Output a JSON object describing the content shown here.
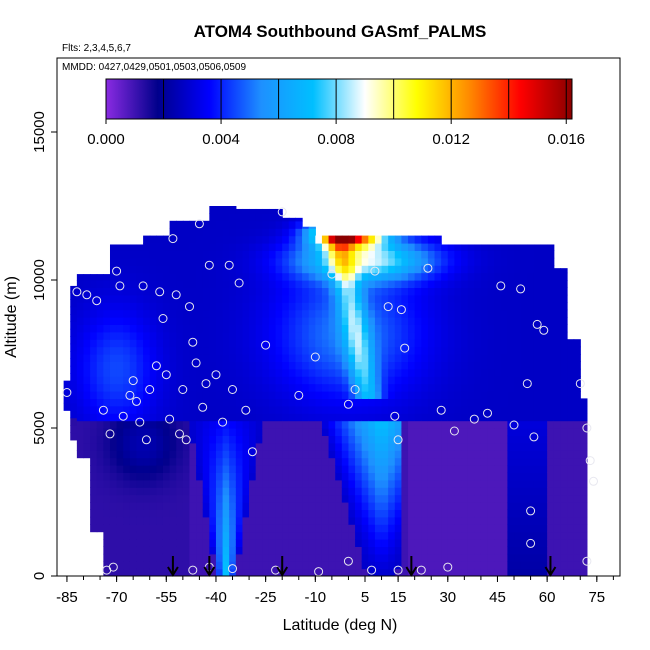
{
  "header": {
    "title": "ATOM4 Southbound GASmf_PALMS",
    "flights_note": "Flts: 2,3,4,5,6,7",
    "dates_note": "MMDD: 0427,0429,0501,0503,0506,0509"
  },
  "chart_data": {
    "type": "heatmap",
    "title": "ATOM4 Southbound GASmf_PALMS",
    "xlabel": "Latitude (deg N)",
    "ylabel": "Altitude (m)",
    "xlim": [
      -88,
      82
    ],
    "ylim": [
      0,
      17500
    ],
    "x_ticks": [
      -85,
      -70,
      -55,
      -40,
      -25,
      -10,
      5,
      15,
      30,
      45,
      60,
      75
    ],
    "y_ticks": [
      0,
      5000,
      10000,
      15000
    ],
    "colorbar": {
      "min": 0.0,
      "max": 0.0162,
      "ticks": [
        0.0,
        0.004,
        0.008,
        0.012,
        0.016
      ],
      "tick_labels": [
        "0.000",
        "0.004",
        "0.008",
        "0.012",
        "0.016"
      ],
      "colors": [
        "#8a2be2",
        "#00008b",
        "#0000ff",
        "#1e90ff",
        "#00bfff",
        "#ffffff",
        "#ffff00",
        "#ff8c00",
        "#ff0000",
        "#8b0000"
      ]
    },
    "field_description_values": {
      "lat_bins": [
        -86,
        -82,
        -78,
        -74,
        -70,
        -66,
        -62,
        -58,
        -54,
        -50,
        -46,
        -42,
        -38,
        -34,
        -30,
        -26,
        -22,
        -18,
        -14,
        -10,
        -6,
        -2,
        2,
        6,
        10,
        14,
        18,
        22,
        26,
        30,
        34,
        38,
        42,
        46,
        50,
        54,
        58,
        62,
        66,
        70
      ],
      "alt_bins": [
        0,
        1000,
        2000,
        3000,
        4000,
        5000,
        6000,
        7000,
        8000,
        9000,
        10000,
        11000,
        12000
      ]
    },
    "surface_arrows_lat": [
      -53,
      -42,
      -20,
      19,
      61
    ],
    "observations": [
      {
        "lat": -85,
        "alt": 6200
      },
      {
        "lat": -82,
        "alt": 9600
      },
      {
        "lat": -79,
        "alt": 9500
      },
      {
        "lat": -76,
        "alt": 9300
      },
      {
        "lat": -74,
        "alt": 5600
      },
      {
        "lat": -72,
        "alt": 4800
      },
      {
        "lat": -70,
        "alt": 10300
      },
      {
        "lat": -69,
        "alt": 9800
      },
      {
        "lat": -68,
        "alt": 5400
      },
      {
        "lat": -66,
        "alt": 6100
      },
      {
        "lat": -65,
        "alt": 6600
      },
      {
        "lat": -64,
        "alt": 5900
      },
      {
        "lat": -63,
        "alt": 5200
      },
      {
        "lat": -62,
        "alt": 9800
      },
      {
        "lat": -61,
        "alt": 4600
      },
      {
        "lat": -60,
        "alt": 6300
      },
      {
        "lat": -58,
        "alt": 7100
      },
      {
        "lat": -57,
        "alt": 9600
      },
      {
        "lat": -56,
        "alt": 8700
      },
      {
        "lat": -55,
        "alt": 6800
      },
      {
        "lat": -54,
        "alt": 5300
      },
      {
        "lat": -53,
        "alt": 11400
      },
      {
        "lat": -52,
        "alt": 9500
      },
      {
        "lat": -50,
        "alt": 6300
      },
      {
        "lat": -49,
        "alt": 4600
      },
      {
        "lat": -48,
        "alt": 9100
      },
      {
        "lat": -47,
        "alt": 7900
      },
      {
        "lat": -46,
        "alt": 7200
      },
      {
        "lat": -45,
        "alt": 11900
      },
      {
        "lat": -44,
        "alt": 5700
      },
      {
        "lat": -43,
        "alt": 6500
      },
      {
        "lat": -42,
        "alt": 10500
      },
      {
        "lat": -40,
        "alt": 6800
      },
      {
        "lat": -38,
        "alt": 5200
      },
      {
        "lat": -36,
        "alt": 10500
      },
      {
        "lat": -35,
        "alt": 6300
      },
      {
        "lat": -33,
        "alt": 9900
      },
      {
        "lat": -31,
        "alt": 5600
      },
      {
        "lat": -29,
        "alt": 4200
      },
      {
        "lat": -25,
        "alt": 7800
      },
      {
        "lat": -20,
        "alt": 12300
      },
      {
        "lat": -15,
        "alt": 6100
      },
      {
        "lat": -10,
        "alt": 7400
      },
      {
        "lat": -5,
        "alt": 10200
      },
      {
        "lat": 0,
        "alt": 5800
      },
      {
        "lat": 2,
        "alt": 6300
      },
      {
        "lat": 8,
        "alt": 10300
      },
      {
        "lat": 12,
        "alt": 9100
      },
      {
        "lat": 14,
        "alt": 5400
      },
      {
        "lat": 15,
        "alt": 4600
      },
      {
        "lat": 16,
        "alt": 9000
      },
      {
        "lat": 17,
        "alt": 7700
      },
      {
        "lat": 24,
        "alt": 10400
      },
      {
        "lat": 28,
        "alt": 5600
      },
      {
        "lat": 32,
        "alt": 4900
      },
      {
        "lat": 38,
        "alt": 5300
      },
      {
        "lat": 42,
        "alt": 5500
      },
      {
        "lat": 46,
        "alt": 9800
      },
      {
        "lat": 50,
        "alt": 5100
      },
      {
        "lat": 52,
        "alt": 9700
      },
      {
        "lat": 54,
        "alt": 6500
      },
      {
        "lat": 56,
        "alt": 4700
      },
      {
        "lat": 57,
        "alt": 8500
      },
      {
        "lat": 59,
        "alt": 8300
      },
      {
        "lat": 70,
        "alt": 6500
      },
      {
        "lat": 72,
        "alt": 5000
      },
      {
        "lat": 73,
        "alt": 3900
      },
      {
        "lat": 74,
        "alt": 3200
      },
      {
        "lat": 55,
        "alt": 2200
      },
      {
        "lat": 55,
        "alt": 1100
      },
      {
        "lat": -73,
        "alt": 200
      },
      {
        "lat": -71,
        "alt": 300
      },
      {
        "lat": -47,
        "alt": 200
      },
      {
        "lat": -42,
        "alt": 300
      },
      {
        "lat": -35,
        "alt": 250
      },
      {
        "lat": -22,
        "alt": 200
      },
      {
        "lat": -9,
        "alt": 150
      },
      {
        "lat": 0,
        "alt": 500
      },
      {
        "lat": 7,
        "alt": 200
      },
      {
        "lat": 15,
        "alt": 200
      },
      {
        "lat": 22,
        "alt": 200
      },
      {
        "lat": 30,
        "alt": 300
      },
      {
        "lat": 72,
        "alt": 500
      },
      {
        "lat": -51,
        "alt": 4800
      }
    ]
  }
}
